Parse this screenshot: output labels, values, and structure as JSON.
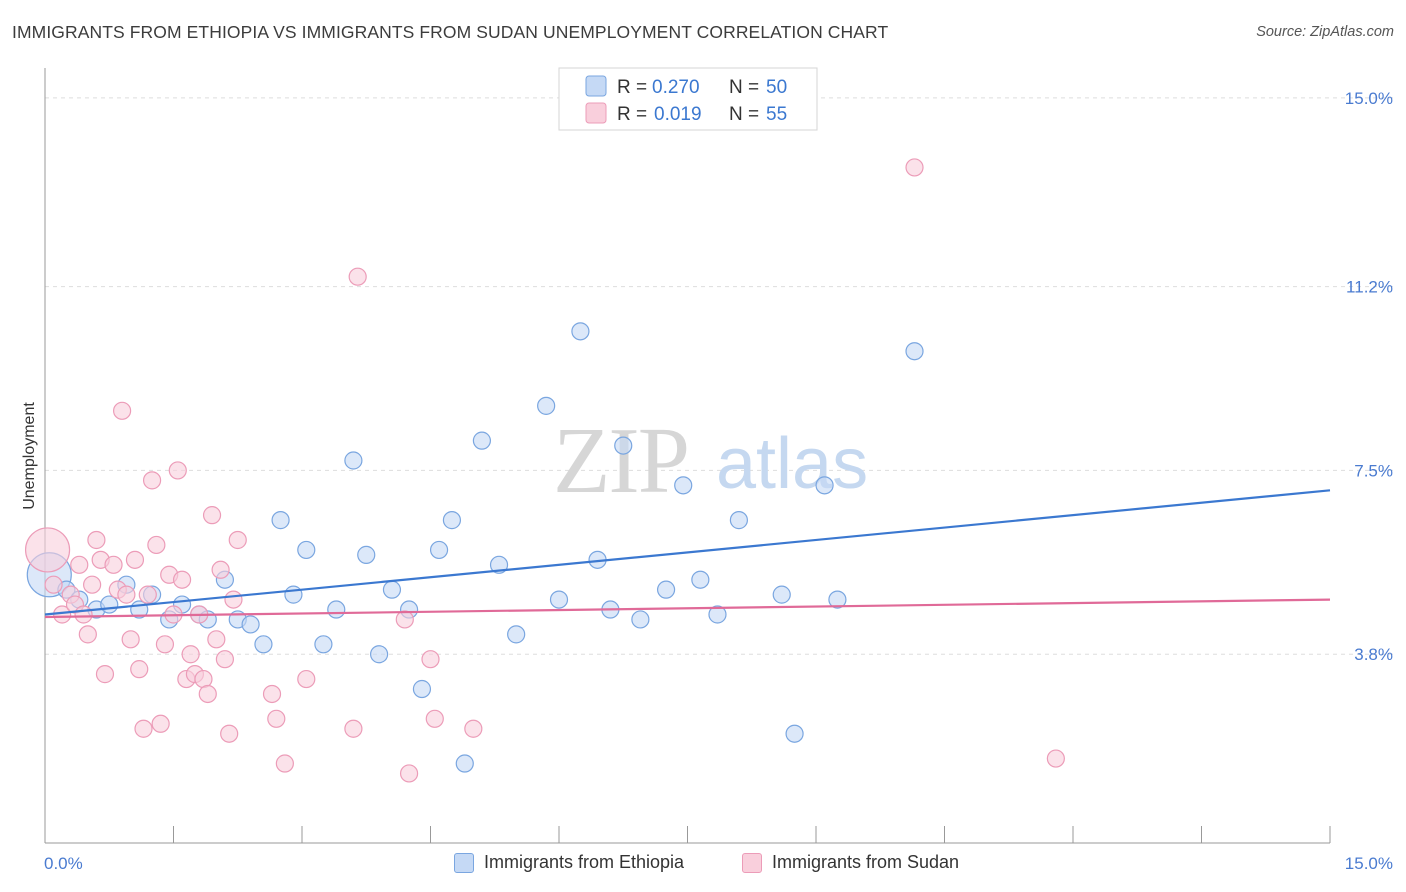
{
  "title": "IMMIGRANTS FROM ETHIOPIA VS IMMIGRANTS FROM SUDAN UNEMPLOYMENT CORRELATION CHART",
  "source": "Source: ZipAtlas.com",
  "watermark": {
    "zip": "ZIP",
    "atlas": "atlas"
  },
  "colors": {
    "blue": "#3b78d0",
    "blue_fill": "#c5d9f5",
    "blue_stroke": "#7aa6e0",
    "pink": "#e06a98",
    "pink_fill": "#f9cfdc",
    "pink_stroke": "#ec9cb8",
    "tick_blue": "#4a7bd0",
    "grid": "#dddddd"
  },
  "legend": {
    "rows": [
      {
        "r_label": "R =",
        "r_value": "0.270",
        "n_label": "N =",
        "n_value": "50",
        "series": "blue"
      },
      {
        "r_label": "R =",
        "r_value": "0.019",
        "n_label": "N =",
        "n_value": "55",
        "series": "pink"
      }
    ]
  },
  "bottom_legend": [
    {
      "label": "Immigrants from Ethiopia",
      "series": "blue"
    },
    {
      "label": "Immigrants from Sudan",
      "series": "pink"
    }
  ],
  "chart_data": {
    "type": "scatter",
    "title": "IMMIGRANTS FROM ETHIOPIA VS IMMIGRANTS FROM SUDAN UNEMPLOYMENT CORRELATION CHART",
    "xlabel": "",
    "ylabel": "Unemployment",
    "xlim": [
      0,
      15
    ],
    "ylim": [
      0,
      15.4
    ],
    "x_tick_labels": [
      {
        "value": 0,
        "label": "0.0%"
      },
      {
        "value": 15,
        "label": "15.0%"
      }
    ],
    "y_tick_labels": [
      {
        "value": 3.8,
        "label": "3.8%"
      },
      {
        "value": 7.5,
        "label": "7.5%"
      },
      {
        "value": 11.2,
        "label": "11.2%"
      },
      {
        "value": 15.0,
        "label": "15.0%"
      }
    ],
    "x_minor_ticks": [
      0,
      1.5,
      3,
      4.5,
      6,
      7.5,
      9,
      10.5,
      12,
      13.5,
      15
    ],
    "series": [
      {
        "name": "Immigrants from Ethiopia",
        "color": "blue",
        "R": 0.27,
        "N": 50,
        "trend": {
          "x0": 0,
          "y0": 4.6,
          "x1": 15,
          "y1": 7.1
        },
        "points": [
          {
            "x": 0.05,
            "y": 5.4,
            "big": true
          },
          {
            "x": 0.25,
            "y": 5.1
          },
          {
            "x": 0.4,
            "y": 4.9
          },
          {
            "x": 0.6,
            "y": 4.7
          },
          {
            "x": 0.75,
            "y": 4.8
          },
          {
            "x": 0.95,
            "y": 5.2
          },
          {
            "x": 1.1,
            "y": 4.7
          },
          {
            "x": 1.25,
            "y": 5.0
          },
          {
            "x": 1.45,
            "y": 4.5
          },
          {
            "x": 1.6,
            "y": 4.8
          },
          {
            "x": 1.8,
            "y": 4.6
          },
          {
            "x": 1.9,
            "y": 4.5
          },
          {
            "x": 2.1,
            "y": 5.3
          },
          {
            "x": 2.25,
            "y": 4.5
          },
          {
            "x": 2.4,
            "y": 4.4
          },
          {
            "x": 2.55,
            "y": 4.0
          },
          {
            "x": 2.75,
            "y": 6.5
          },
          {
            "x": 2.9,
            "y": 5.0
          },
          {
            "x": 3.05,
            "y": 5.9
          },
          {
            "x": 3.25,
            "y": 4.0
          },
          {
            "x": 3.4,
            "y": 4.7
          },
          {
            "x": 3.6,
            "y": 7.7
          },
          {
            "x": 3.75,
            "y": 5.8
          },
          {
            "x": 3.9,
            "y": 3.8
          },
          {
            "x": 4.05,
            "y": 5.1
          },
          {
            "x": 4.25,
            "y": 4.7
          },
          {
            "x": 4.4,
            "y": 3.1
          },
          {
            "x": 4.6,
            "y": 5.9
          },
          {
            "x": 4.75,
            "y": 6.5
          },
          {
            "x": 4.9,
            "y": 1.6
          },
          {
            "x": 5.1,
            "y": 8.1
          },
          {
            "x": 5.3,
            "y": 5.6
          },
          {
            "x": 5.5,
            "y": 4.2
          },
          {
            "x": 5.85,
            "y": 8.8
          },
          {
            "x": 6.0,
            "y": 4.9
          },
          {
            "x": 6.25,
            "y": 10.3
          },
          {
            "x": 6.45,
            "y": 5.7
          },
          {
            "x": 6.6,
            "y": 4.7
          },
          {
            "x": 6.75,
            "y": 8.0
          },
          {
            "x": 6.95,
            "y": 4.5
          },
          {
            "x": 7.25,
            "y": 5.1
          },
          {
            "x": 7.45,
            "y": 7.2
          },
          {
            "x": 7.65,
            "y": 5.3
          },
          {
            "x": 7.85,
            "y": 4.6
          },
          {
            "x": 8.1,
            "y": 6.5
          },
          {
            "x": 8.6,
            "y": 5.0
          },
          {
            "x": 8.75,
            "y": 2.2
          },
          {
            "x": 9.1,
            "y": 7.2
          },
          {
            "x": 9.25,
            "y": 4.9
          },
          {
            "x": 10.15,
            "y": 9.9
          }
        ]
      },
      {
        "name": "Immigrants from Sudan",
        "color": "pink",
        "R": 0.019,
        "N": 55,
        "trend": {
          "x0": 0,
          "y0": 4.55,
          "x1": 15,
          "y1": 4.9
        },
        "points": [
          {
            "x": 0.03,
            "y": 5.9,
            "big": true
          },
          {
            "x": 0.1,
            "y": 5.2
          },
          {
            "x": 0.2,
            "y": 4.6
          },
          {
            "x": 0.3,
            "y": 5.0
          },
          {
            "x": 0.35,
            "y": 4.8
          },
          {
            "x": 0.4,
            "y": 5.6
          },
          {
            "x": 0.45,
            "y": 4.6
          },
          {
            "x": 0.55,
            "y": 5.2
          },
          {
            "x": 0.5,
            "y": 4.2
          },
          {
            "x": 0.6,
            "y": 6.1
          },
          {
            "x": 0.65,
            "y": 5.7
          },
          {
            "x": 0.7,
            "y": 3.4
          },
          {
            "x": 0.8,
            "y": 5.6
          },
          {
            "x": 0.85,
            "y": 5.1
          },
          {
            "x": 0.9,
            "y": 8.7
          },
          {
            "x": 0.95,
            "y": 5.0
          },
          {
            "x": 1.0,
            "y": 4.1
          },
          {
            "x": 1.05,
            "y": 5.7
          },
          {
            "x": 1.1,
            "y": 3.5
          },
          {
            "x": 1.15,
            "y": 2.3
          },
          {
            "x": 1.2,
            "y": 5.0
          },
          {
            "x": 1.25,
            "y": 7.3
          },
          {
            "x": 1.3,
            "y": 6.0
          },
          {
            "x": 1.35,
            "y": 2.4
          },
          {
            "x": 1.4,
            "y": 4.0
          },
          {
            "x": 1.45,
            "y": 5.4
          },
          {
            "x": 1.5,
            "y": 4.6
          },
          {
            "x": 1.55,
            "y": 7.5
          },
          {
            "x": 1.6,
            "y": 5.3
          },
          {
            "x": 1.65,
            "y": 3.3
          },
          {
            "x": 1.7,
            "y": 3.8
          },
          {
            "x": 1.75,
            "y": 3.4
          },
          {
            "x": 1.8,
            "y": 4.6
          },
          {
            "x": 1.85,
            "y": 3.3
          },
          {
            "x": 1.9,
            "y": 3.0
          },
          {
            "x": 1.95,
            "y": 6.6
          },
          {
            "x": 2.0,
            "y": 4.1
          },
          {
            "x": 2.05,
            "y": 5.5
          },
          {
            "x": 2.1,
            "y": 3.7
          },
          {
            "x": 2.15,
            "y": 2.2
          },
          {
            "x": 2.2,
            "y": 4.9
          },
          {
            "x": 2.25,
            "y": 6.1
          },
          {
            "x": 2.65,
            "y": 3.0
          },
          {
            "x": 2.7,
            "y": 2.5
          },
          {
            "x": 2.8,
            "y": 1.6
          },
          {
            "x": 3.05,
            "y": 3.3
          },
          {
            "x": 3.6,
            "y": 2.3
          },
          {
            "x": 3.65,
            "y": 11.4
          },
          {
            "x": 4.2,
            "y": 4.5
          },
          {
            "x": 4.25,
            "y": 1.4
          },
          {
            "x": 4.5,
            "y": 3.7
          },
          {
            "x": 4.55,
            "y": 2.5
          },
          {
            "x": 5.0,
            "y": 2.3
          },
          {
            "x": 10.15,
            "y": 13.6
          },
          {
            "x": 11.8,
            "y": 1.7
          }
        ]
      }
    ]
  }
}
